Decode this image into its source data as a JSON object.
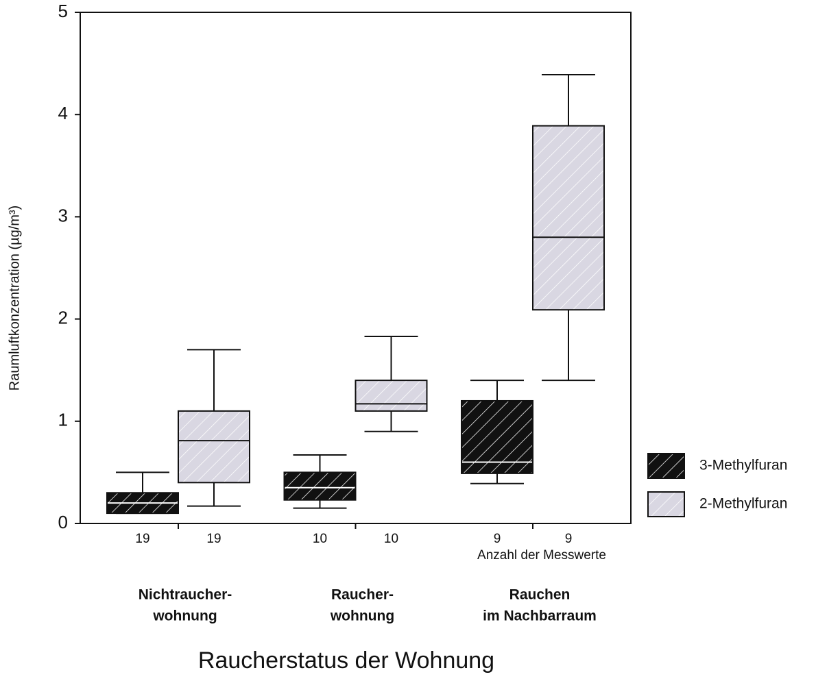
{
  "chart_data": {
    "type": "box",
    "y_label": "Raumluftkonzentration (µg/m³)",
    "x_label": "Raucherstatus der Wohnung",
    "count_label": "Anzahl der Messwerte",
    "categories": [
      [
        "Nichtraucher-",
        "wohnung"
      ],
      [
        "Raucher-",
        "wohnung"
      ],
      [
        "Rauchen",
        "im Nachbarraum"
      ]
    ],
    "ylim": [
      0,
      5
    ],
    "yticks": [
      0,
      1,
      2,
      3,
      4,
      5
    ],
    "series": [
      {
        "name": "3-Methylfuran",
        "color": "#111111",
        "hatch": "#ffffff",
        "median_color": "#ffffff",
        "counts": [
          19,
          10,
          9
        ],
        "min": [
          0.1,
          0.15,
          0.39
        ],
        "q1": [
          0.1,
          0.23,
          0.49
        ],
        "median": [
          0.2,
          0.35,
          0.6
        ],
        "q3": [
          0.3,
          0.5,
          1.2
        ],
        "max": [
          0.5,
          0.67,
          1.4
        ]
      },
      {
        "name": "2-Methylfuran",
        "color": "#d9d7e2",
        "hatch": "#ffffff",
        "median_color": "#111111",
        "counts": [
          19,
          10,
          9
        ],
        "min": [
          0.17,
          0.9,
          1.4
        ],
        "q1": [
          0.4,
          1.1,
          2.09
        ],
        "median": [
          0.81,
          1.17,
          2.8
        ],
        "q3": [
          1.1,
          1.4,
          3.89
        ],
        "max": [
          1.7,
          1.83,
          4.39
        ]
      }
    ]
  }
}
